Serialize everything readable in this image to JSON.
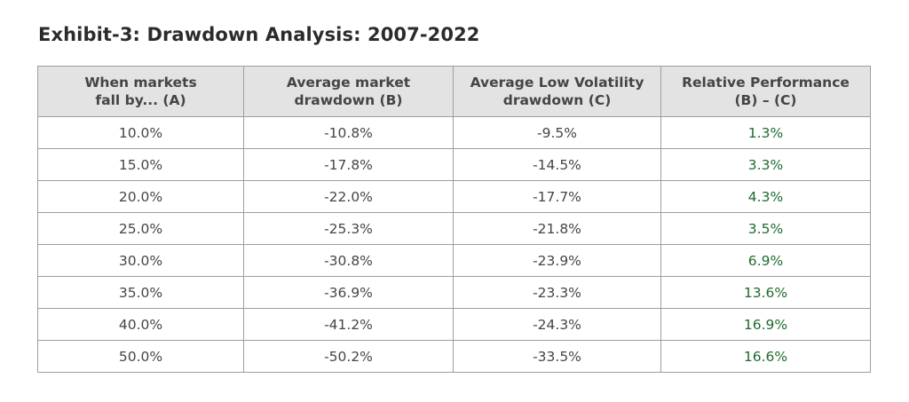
{
  "title": "Exhibit-3: Drawdown Analysis: 2007-2022",
  "colors": {
    "header_background": "#e3e3e3",
    "border": "#9e9e9e",
    "text": "#454545",
    "positive_text": "#1f6b2c"
  },
  "chart_data": {
    "type": "table",
    "title": "Exhibit-3: Drawdown Analysis: 2007-2022",
    "columns": [
      "When markets fall by... (A)",
      "Average market drawdown (B)",
      "Average Low Volatility drawdown (C)",
      "Relative Performance (B) – (C)"
    ],
    "rows": [
      [
        "10.0%",
        "-10.8%",
        "-9.5%",
        "1.3%"
      ],
      [
        "15.0%",
        "-17.8%",
        "-14.5%",
        "3.3%"
      ],
      [
        "20.0%",
        "-22.0%",
        "-17.7%",
        "4.3%"
      ],
      [
        "25.0%",
        "-25.3%",
        "-21.8%",
        "3.5%"
      ],
      [
        "30.0%",
        "-30.8%",
        "-23.9%",
        "6.9%"
      ],
      [
        "35.0%",
        "-36.9%",
        "-23.3%",
        "13.6%"
      ],
      [
        "40.0%",
        "-41.2%",
        "-24.3%",
        "16.9%"
      ],
      [
        "50.0%",
        "-50.2%",
        "-33.5%",
        "16.6%"
      ]
    ]
  },
  "header_lines": [
    [
      "When markets",
      "fall by... (A)"
    ],
    [
      "Average market",
      "drawdown (B)"
    ],
    [
      "Average Low Volatility",
      "drawdown (C)"
    ],
    [
      "Relative Performance",
      "(B) – (C)"
    ]
  ]
}
